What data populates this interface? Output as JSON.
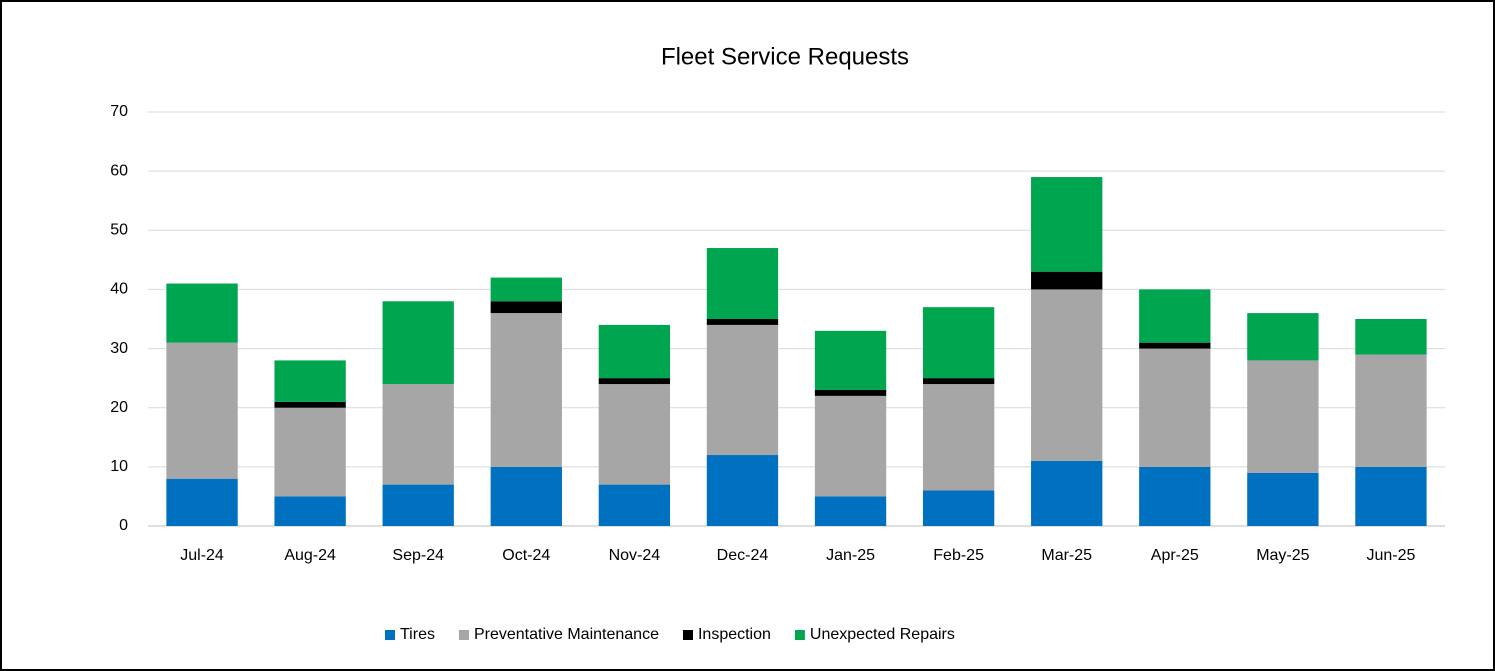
{
  "chart_data": {
    "type": "stacked_bar",
    "title": "Fleet Service Requests",
    "categories": [
      "Jul-24",
      "Aug-24",
      "Sep-24",
      "Oct-24",
      "Nov-24",
      "Dec-24",
      "Jan-25",
      "Feb-25",
      "Mar-25",
      "Apr-25",
      "May-25",
      "Jun-25"
    ],
    "series": [
      {
        "name": "Tires",
        "color": "#0070c0",
        "values": [
          8,
          5,
          7,
          10,
          7,
          12,
          5,
          6,
          11,
          10,
          9,
          10
        ]
      },
      {
        "name": "Preventative Maintenance",
        "color": "#a6a6a6",
        "values": [
          23,
          15,
          17,
          26,
          17,
          22,
          17,
          18,
          29,
          20,
          19,
          19
        ]
      },
      {
        "name": "Inspection",
        "color": "#000000",
        "values": [
          0,
          1,
          0,
          2,
          1,
          1,
          1,
          1,
          3,
          1,
          0,
          0
        ]
      },
      {
        "name": "Unexpected Repairs",
        "color": "#00a550",
        "values": [
          10,
          7,
          14,
          4,
          9,
          12,
          10,
          12,
          16,
          9,
          8,
          6
        ]
      }
    ],
    "ylim": [
      0,
      70
    ],
    "yticks": [
      0,
      10,
      20,
      30,
      40,
      50,
      60,
      70
    ],
    "grid": true,
    "legend": "bottom"
  }
}
